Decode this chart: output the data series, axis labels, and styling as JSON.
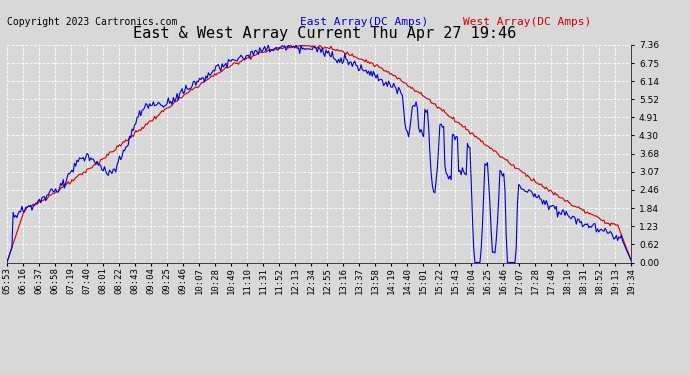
{
  "title": "East & West Array Current Thu Apr 27 19:46",
  "copyright": "Copyright 2023 Cartronics.com",
  "legend_east": "East Array(DC Amps)",
  "legend_west": "West Array(DC Amps)",
  "east_color": "#0000cc",
  "west_color": "#cc0000",
  "ylim": [
    0,
    7.36
  ],
  "yticks": [
    0.0,
    0.62,
    1.23,
    1.84,
    2.46,
    3.07,
    3.68,
    4.3,
    4.91,
    5.52,
    6.14,
    6.75,
    7.36
  ],
  "background_color": "#d8d8d8",
  "plot_bg_color": "#d8d8d8",
  "grid_color": "#ffffff",
  "title_fontsize": 11,
  "tick_fontsize": 6.5,
  "copyright_fontsize": 7,
  "legend_fontsize": 8,
  "x_labels": [
    "05:53",
    "06:16",
    "06:37",
    "06:58",
    "07:19",
    "07:40",
    "08:01",
    "08:22",
    "08:43",
    "09:04",
    "09:25",
    "09:46",
    "10:07",
    "10:28",
    "10:49",
    "11:10",
    "11:31",
    "11:52",
    "12:13",
    "12:34",
    "12:55",
    "13:16",
    "13:37",
    "13:58",
    "14:19",
    "14:40",
    "15:01",
    "15:22",
    "15:43",
    "16:04",
    "16:25",
    "16:46",
    "17:07",
    "17:28",
    "17:49",
    "18:10",
    "18:31",
    "18:52",
    "19:13",
    "19:34"
  ],
  "n_points": 500
}
